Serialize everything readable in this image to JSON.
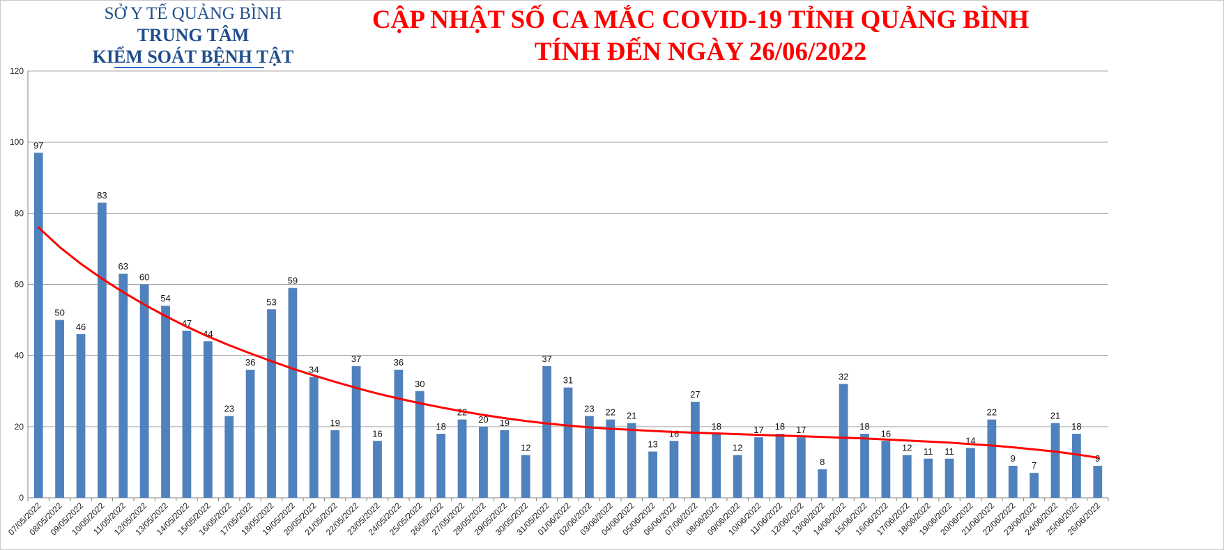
{
  "header": {
    "org_line1": "SỞ Y TẾ QUẢNG BÌNH",
    "org_line2": "TRUNG TÂM",
    "org_line3": "KIỂM SOÁT BỆNH TẬT",
    "title_line1": "CẬP NHẬT SỐ CA MẮC COVID-19 TỈNH QUẢNG BÌNH",
    "title_line2": "TÍNH ĐẾN NGÀY 26/06/2022"
  },
  "colors": {
    "bar": "#4f81bd",
    "trendline": "#ff0000",
    "title": "#ff0000",
    "org_text": "#1f4e8c",
    "grid": "#a6a6a6"
  },
  "chart_data": {
    "type": "bar",
    "title": "CẬP NHẬT SỐ CA MẮC COVID-19 TỈNH QUẢNG BÌNH TÍNH ĐẾN NGÀY 26/06/2022",
    "xlabel": "",
    "ylabel": "",
    "ylim": [
      0,
      120
    ],
    "yticks": [
      0,
      20,
      40,
      60,
      80,
      100,
      120
    ],
    "grid": true,
    "legend": "none",
    "trendline": "decreasing curve (red)",
    "categories": [
      "07/05/2022",
      "08/05/2022",
      "09/05/2022",
      "10/05/2022",
      "11/05/2022",
      "12/05/2022",
      "13/05/2022",
      "14/05/2022",
      "15/05/2022",
      "16/05/2022",
      "17/05/2022",
      "18/05/2022",
      "19/05/2022",
      "20/05/2022",
      "21/05/2022",
      "22/05/2022",
      "23/05/2022",
      "24/05/2022",
      "25/05/2022",
      "26/05/2022",
      "27/05/2022",
      "28/05/2022",
      "29/05/2022",
      "30/05/2022",
      "31/05/2022",
      "01/06/2022",
      "02/06/2022",
      "03/06/2022",
      "04/06/2022",
      "05/06/2022",
      "06/06/2022",
      "07/06/2022",
      "08/06/2022",
      "09/06/2022",
      "10/06/2022",
      "11/06/2022",
      "12/06/2022",
      "13/06/2022",
      "14/06/2022",
      "15/06/2022",
      "16/06/2022",
      "17/06/2022",
      "18/06/2022",
      "19/06/2022",
      "20/06/2022",
      "21/06/2022",
      "22/06/2022",
      "23/06/2022",
      "24/06/2022",
      "25/06/2022",
      "26/06/2022"
    ],
    "values": [
      97,
      50,
      46,
      83,
      63,
      60,
      54,
      47,
      44,
      23,
      36,
      53,
      59,
      34,
      19,
      37,
      16,
      36,
      30,
      18,
      22,
      20,
      19,
      12,
      37,
      31,
      23,
      22,
      21,
      13,
      16,
      27,
      18,
      12,
      17,
      18,
      17,
      8,
      32,
      18,
      16,
      12,
      11,
      11,
      14,
      22,
      9,
      7,
      21,
      18,
      9
    ],
    "trend_values": [
      76,
      70.5,
      65.8,
      61.6,
      57.8,
      54.3,
      51.1,
      48.1,
      45.4,
      42.9,
      40.6,
      38.4,
      36.3,
      34.4,
      32.6,
      30.9,
      29.3,
      27.9,
      26.6,
      25.4,
      24.3,
      23.3,
      22.4,
      21.6,
      20.9,
      20.3,
      19.8,
      19.4,
      19.1,
      18.8,
      18.5,
      18.3,
      18.1,
      17.9,
      17.7,
      17.5,
      17.3,
      17.1,
      16.9,
      16.7,
      16.4,
      16.1,
      15.8,
      15.5,
      15.1,
      14.7,
      14.2,
      13.6,
      13,
      12.2,
      11.3
    ]
  }
}
